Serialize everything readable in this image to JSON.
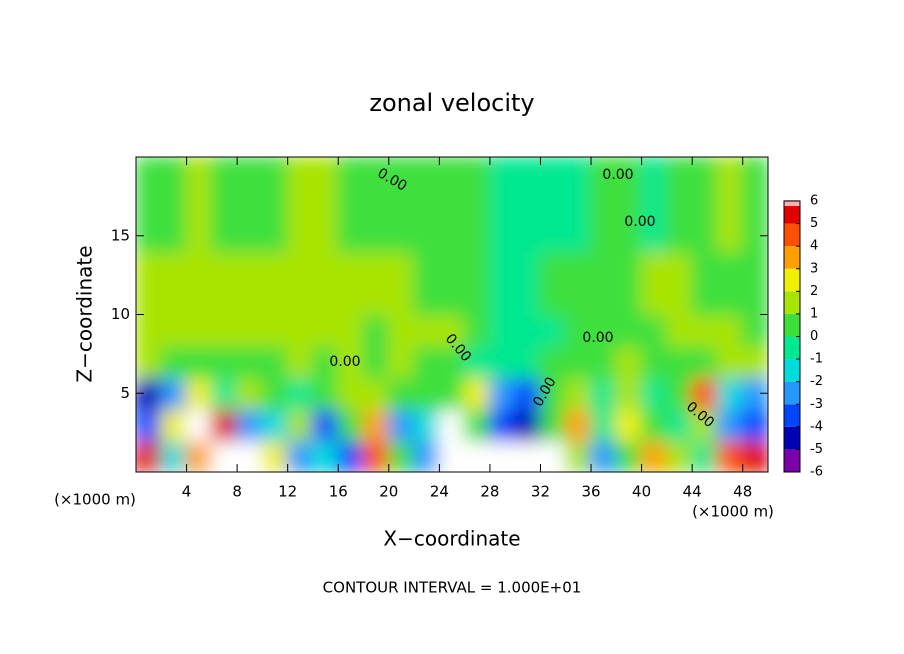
{
  "chart_data": {
    "type": "contour",
    "title": "zonal velocity",
    "xlabel": "X−coordinate",
    "ylabel": "Z−coordinate",
    "x_unit_label": "(×1000 m)",
    "footer": "CONTOUR INTERVAL = 1.000E+01",
    "xlim": [
      0,
      50
    ],
    "xticks": [
      4,
      8,
      12,
      16,
      20,
      24,
      28,
      32,
      36,
      40,
      44,
      48
    ],
    "ylim": [
      0,
      20
    ],
    "yticks": [
      5,
      10,
      15
    ],
    "x_edges": [
      0,
      2,
      4,
      6,
      8,
      10,
      12,
      14,
      16,
      18,
      20,
      22,
      24,
      26,
      28,
      30,
      32,
      34,
      36,
      38,
      40,
      42,
      44,
      46,
      48,
      50
    ],
    "z_edges": [
      0,
      2,
      4,
      6,
      8,
      10,
      14,
      20
    ],
    "values": [
      [
        5,
        -2,
        3,
        7,
        7,
        2,
        -3,
        -2,
        -4,
        4,
        0,
        -3,
        8,
        7,
        6,
        8,
        7,
        1,
        -3,
        0,
        3,
        1,
        -1,
        4,
        5
      ],
      [
        -4,
        2,
        7,
        5,
        -3,
        -2,
        1,
        -4,
        0,
        3,
        -3,
        -2,
        7,
        0,
        -4,
        -5,
        0,
        3,
        -1,
        2,
        0,
        -1,
        1,
        -3,
        -4
      ],
      [
        -5,
        -3,
        2,
        -1,
        1,
        0,
        -1,
        0,
        1,
        1,
        0,
        0,
        0,
        2,
        -3,
        -4,
        0,
        1,
        -1,
        1,
        -1,
        0,
        4,
        -2,
        -3
      ],
      [
        1,
        0,
        0,
        0,
        0,
        0,
        1,
        0,
        1,
        0,
        1,
        0,
        0,
        -1,
        -1,
        -1,
        0,
        0,
        0,
        1,
        0,
        0,
        0,
        1,
        1
      ],
      [
        1,
        1,
        1,
        1,
        1,
        1,
        1,
        1,
        1,
        0,
        1,
        1,
        1,
        0,
        -1,
        -1,
        -1,
        0,
        0,
        0,
        0,
        1,
        1,
        1,
        0
      ],
      [
        1,
        1,
        1,
        1,
        1,
        1,
        1,
        1,
        1,
        1,
        1,
        0,
        0,
        0,
        -1,
        -1,
        0,
        0,
        0,
        0,
        1,
        1,
        0,
        0,
        0
      ],
      [
        0,
        0,
        1,
        0,
        0,
        0,
        1,
        1,
        0,
        0,
        0,
        0,
        0,
        0,
        -1,
        -1,
        -1,
        -1,
        0,
        0,
        -1,
        0,
        0,
        1,
        0
      ]
    ],
    "colorbar": {
      "ticks": [
        -6,
        -5,
        -4,
        -3,
        -2,
        -1,
        0,
        1,
        2,
        3,
        4,
        5,
        6
      ],
      "colors": [
        "#7a00a8",
        "#0000b4",
        "#0046ff",
        "#2898ff",
        "#00dcdc",
        "#00e890",
        "#3ee03e",
        "#a8e400",
        "#f0f000",
        "#ffa000",
        "#ff5000",
        "#e00000"
      ],
      "over_color": "#ffffff"
    },
    "contour_labels": [
      "0.00",
      "0.00",
      "0.00",
      "0.00",
      "0.00",
      "0.00",
      "0.00",
      "0.00"
    ]
  }
}
